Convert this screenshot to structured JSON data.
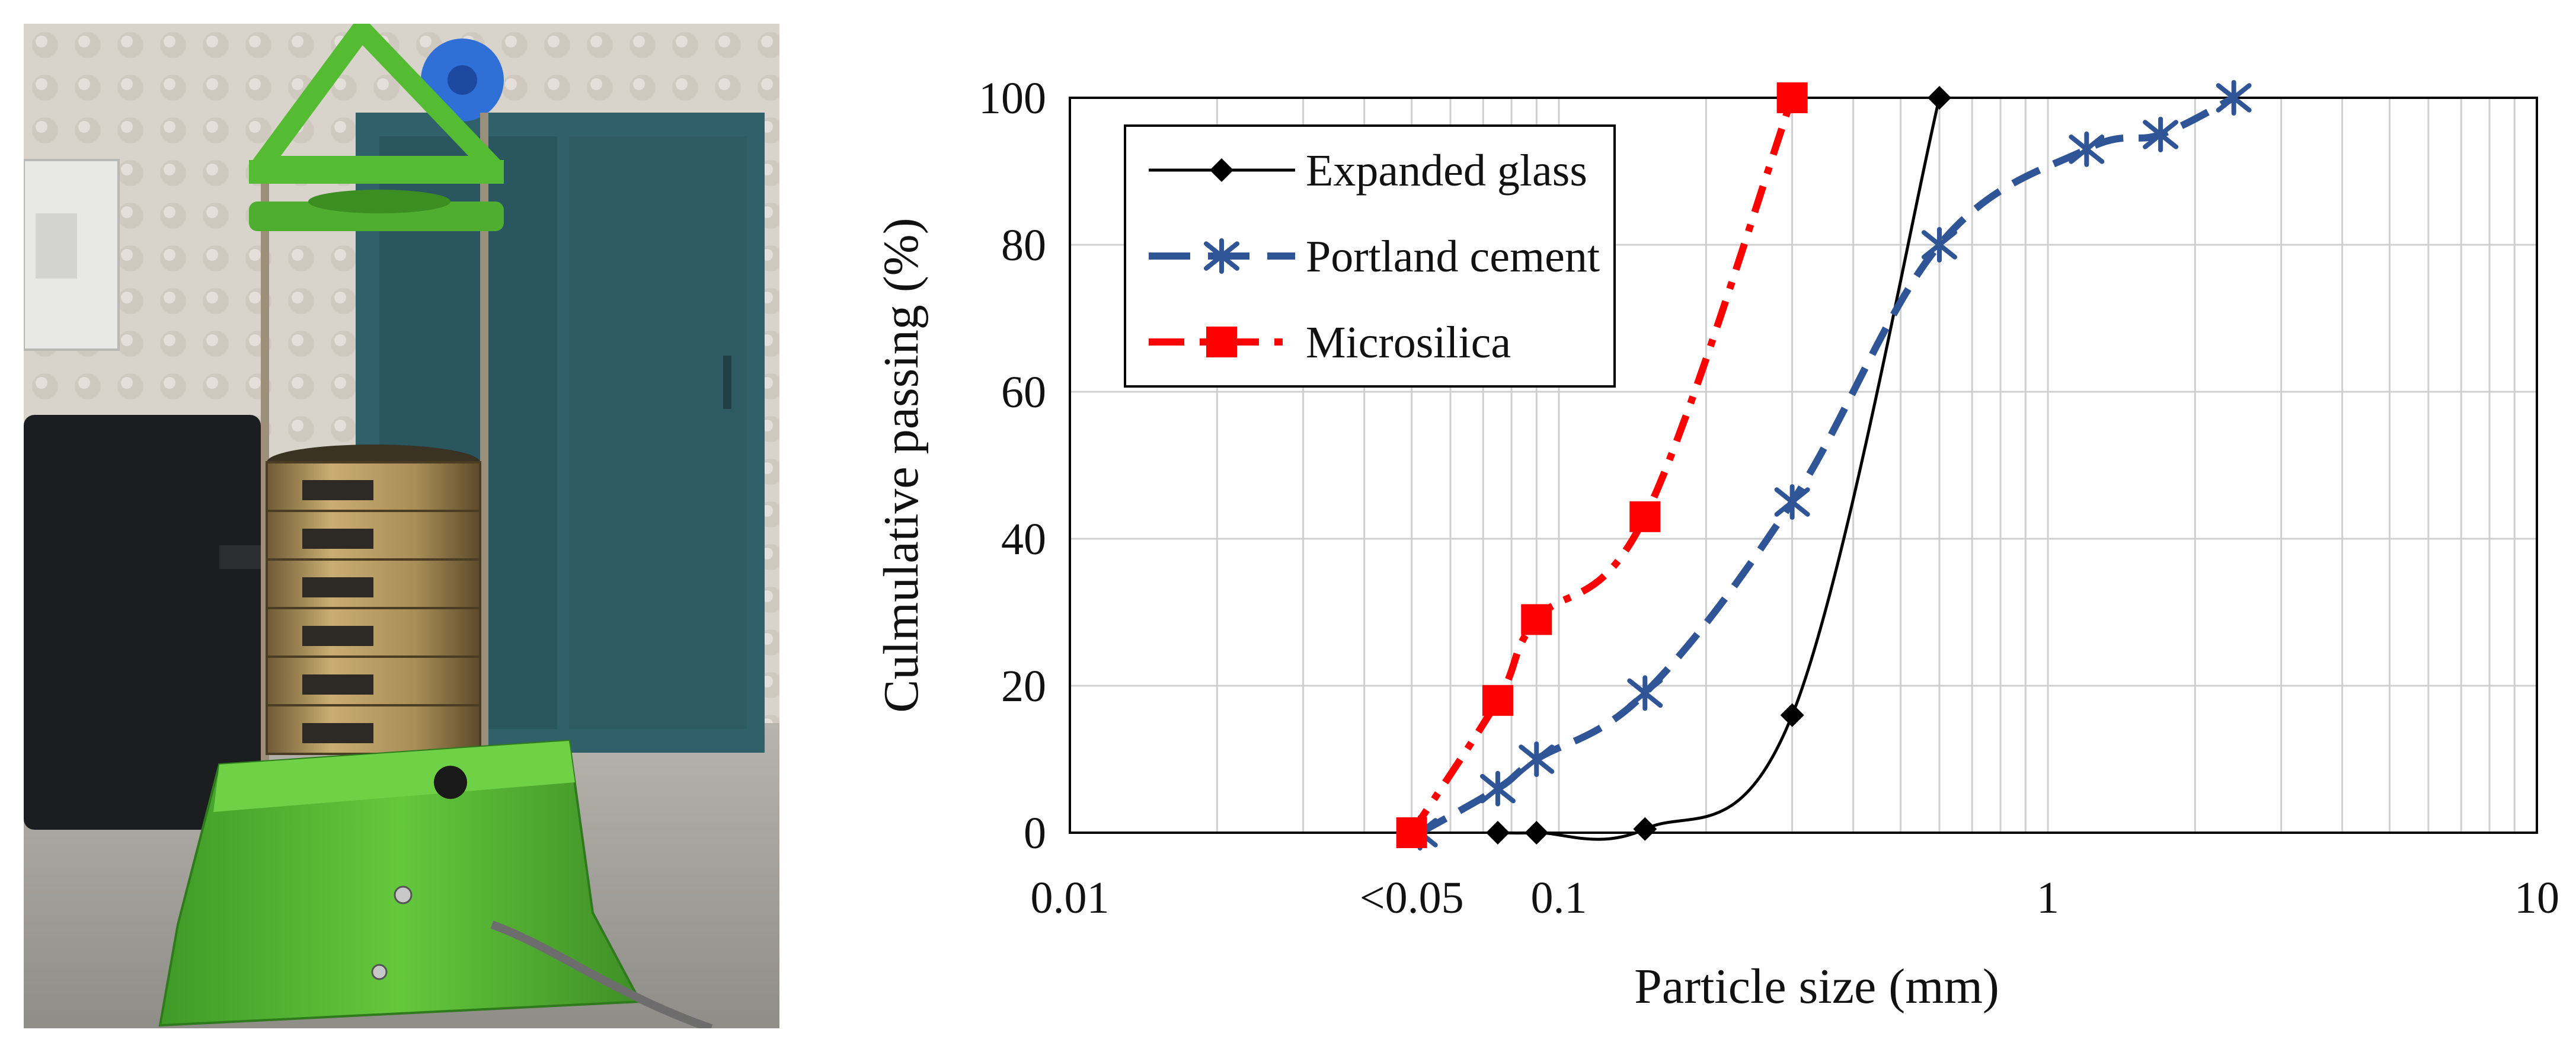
{
  "photo": {
    "caption": "",
    "sieve_stack_count": 6,
    "colors": {
      "shaker_frame": "#5fc43a",
      "cabinet": "#2f5e66",
      "wall": "#d9d4cc",
      "floor": "#a7a49d",
      "brass": "#b79a5e",
      "black_case": "#1b1c1f"
    }
  },
  "chart_data": {
    "type": "line",
    "title": "",
    "xlabel": "Particle size (mm)",
    "ylabel": "Culmulative passing (%)",
    "xscale": "log",
    "xlim": [
      0.01,
      10
    ],
    "ylim": [
      0,
      100
    ],
    "x_ticks": [
      {
        "value": 0.01,
        "label": "0.01"
      },
      {
        "value": 0.05,
        "label": "<0.05"
      },
      {
        "value": 0.1,
        "label": "0.1"
      },
      {
        "value": 1,
        "label": "1"
      },
      {
        "value": 10,
        "label": "10"
      }
    ],
    "y_ticks": [
      {
        "value": 0,
        "label": "0"
      },
      {
        "value": 20,
        "label": "20"
      },
      {
        "value": 40,
        "label": "40"
      },
      {
        "value": 60,
        "label": "60"
      },
      {
        "value": 80,
        "label": "80"
      },
      {
        "value": 100,
        "label": "100"
      }
    ],
    "grid": "log-minor vertical, major horizontal",
    "legend_position": "top-left",
    "series": [
      {
        "name": "Expanded glass",
        "color": "#000000",
        "line": "solid",
        "marker": "diamond",
        "x": [
          0.075,
          0.09,
          0.15,
          0.3,
          0.6
        ],
        "y": [
          0,
          0,
          0.5,
          16,
          100
        ]
      },
      {
        "name": "Portland cement",
        "color": "#2f5597",
        "line": "dashed",
        "marker": "asterisk",
        "x": [
          0.052,
          0.075,
          0.09,
          0.15,
          0.3,
          0.6,
          1.2,
          1.7,
          2.4
        ],
        "y": [
          0,
          6,
          10,
          19,
          45,
          80,
          93,
          95,
          100
        ]
      },
      {
        "name": "Microsilica",
        "color": "#ff0000",
        "line": "dashdot",
        "marker": "square",
        "x": [
          0.05,
          0.075,
          0.09,
          0.15,
          0.3
        ],
        "y": [
          0,
          18,
          29,
          43,
          100
        ]
      }
    ]
  }
}
